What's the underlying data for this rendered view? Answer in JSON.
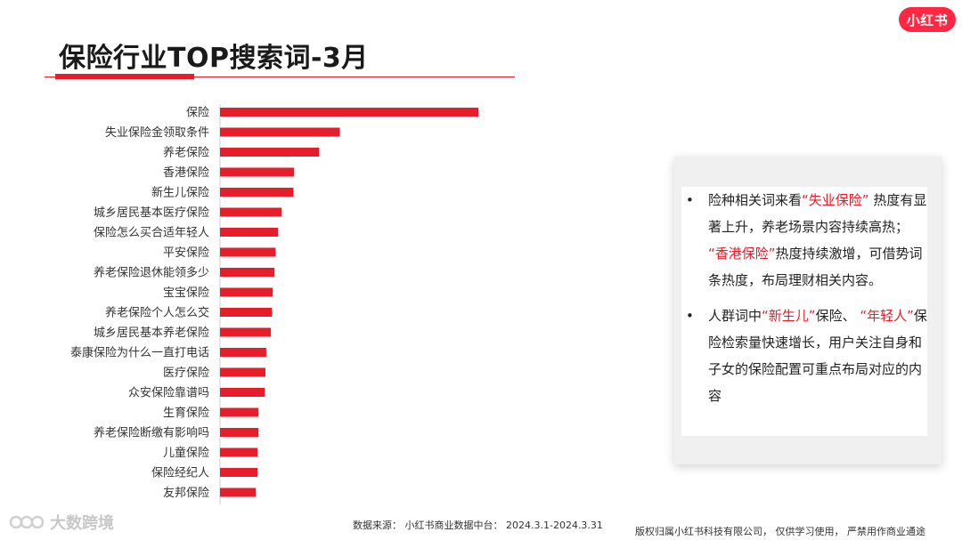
{
  "slide": {
    "title": "保险行业TOP搜索词-3月",
    "logo_text": "小红书",
    "source_note": "数据来源：  小红书商业数据中台：  2024.3.1-2024.3.31",
    "copyright": "版权归属小红书科技有限公司，   仅供学习使用，   严禁用作商业通途",
    "watermark_text": "大数跨境",
    "accent_color": "#e61e2b"
  },
  "callout": {
    "bullet_symbol": "•",
    "bullet1": {
      "pre": "险种相关词来看",
      "hl1": "“失业保险”",
      "mid1": "热度有显著上升，养老场景内容持续高热；",
      "hl2": "“香港保险”",
      "post": "热度持续激增，可借势词条热度，布局理财相关内容。"
    },
    "bullet2": {
      "pre": "人群词中",
      "hl1": "“新生儿”",
      "mid1": "保险、",
      "hl2": "“年轻人”",
      "post": "保险检索量快速增长，用户关注自身和子女的保险配置可重点布局对应的内容"
    }
  },
  "chart_data": {
    "type": "bar",
    "orientation": "horizontal",
    "bar_color": "#e61e2b",
    "categories": [
      "保险",
      "失业保险金领取条件",
      "养老保险",
      "香港保险",
      "新生儿保险",
      "城乡居民基本医疗保险",
      "保险怎么买合适年轻人",
      "平安保险",
      "养老保险退休能领多少",
      "宝宝保险",
      "养老保险个人怎么交",
      "城乡居民基本养老保险",
      "泰康保险为什么一直打电话",
      "医疗保险",
      "众安保险靠谱吗",
      "生育保险",
      "养老保险断缴有影响吗",
      "儿童保险",
      "保险经纪人",
      "友邦保险"
    ],
    "values": [
      100,
      46.4,
      38.4,
      28.7,
      28.4,
      23.9,
      22.5,
      21.5,
      21.1,
      20.4,
      20.1,
      19.7,
      17.9,
      17.6,
      17.3,
      14.9,
      14.9,
      14.5,
      14.5,
      13.8
    ],
    "title": "",
    "xlabel": "",
    "ylabel": "",
    "axis_ticks_shown": false,
    "grid": false,
    "legend": "none"
  }
}
